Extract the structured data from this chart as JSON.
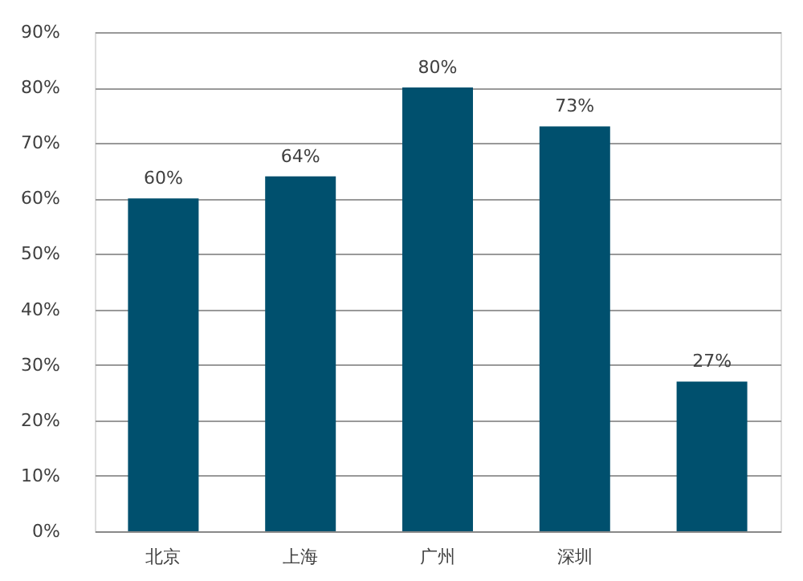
{
  "chart_data": {
    "type": "bar",
    "categories": [
      "北京",
      "上海",
      "广州",
      "深圳",
      null
    ],
    "values": [
      60,
      64,
      80,
      73,
      27
    ],
    "color": "#00506e",
    "data_labels": true,
    "value_labels": [
      "60%",
      "64%",
      "80%",
      "73%",
      "27%"
    ],
    "ylim": [
      0,
      90
    ],
    "yticks": [
      {
        "value": 0,
        "label": "0%"
      },
      {
        "value": 10,
        "label": "10%"
      },
      {
        "value": 20,
        "label": "20%"
      },
      {
        "value": 30,
        "label": "30%"
      },
      {
        "value": 40,
        "label": "40%"
      },
      {
        "value": 50,
        "label": "50%"
      },
      {
        "value": 60,
        "label": "60%"
      },
      {
        "value": 70,
        "label": "70%"
      },
      {
        "value": 80,
        "label": "80%"
      },
      {
        "value": 90,
        "label": "90%"
      }
    ],
    "grid": "y"
  }
}
